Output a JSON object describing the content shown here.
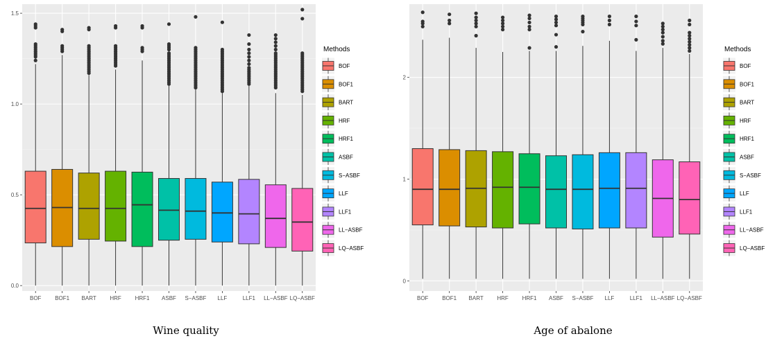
{
  "chart_data": [
    {
      "type": "boxplot",
      "caption": "Wine quality",
      "legend_title": "Methods",
      "ylim": [
        -0.03,
        1.55
      ],
      "yticks": [
        0.0,
        0.5,
        1.0,
        1.5
      ],
      "ytick_labels": [
        "0.0",
        "0.5",
        "1.0",
        "1.5"
      ],
      "legend_position": "right",
      "grid": true,
      "categories": [
        "BOF",
        "BOF1",
        "BART",
        "HRF",
        "HRF1",
        "ASBF",
        "S-ASBF",
        "LLF",
        "LLF1",
        "LL-ASBF",
        "LQ-ASBF"
      ],
      "category_labels": [
        "BOF",
        "BOF1",
        "BART",
        "HRF",
        "HRF1",
        "ASBF",
        "S−ASBF",
        "LLF",
        "LLF1",
        "LL−ASBF",
        "LQ−ASBF"
      ],
      "boxes": [
        {
          "min": 0.0,
          "q1": 0.235,
          "median": 0.425,
          "q3": 0.63,
          "max": 1.22,
          "outliers": [
            1.24,
            1.26,
            1.27,
            1.28,
            1.29,
            1.3,
            1.31,
            1.32,
            1.33,
            1.42,
            1.43,
            1.44
          ]
        },
        {
          "min": 0.0,
          "q1": 0.215,
          "median": 0.43,
          "q3": 0.64,
          "max": 1.27,
          "outliers": [
            1.29,
            1.3,
            1.31,
            1.32,
            1.4,
            1.41
          ]
        },
        {
          "min": 0.0,
          "q1": 0.255,
          "median": 0.425,
          "q3": 0.62,
          "max": 1.16,
          "outliers": [
            1.17,
            1.18,
            1.19,
            1.2,
            1.21,
            1.22,
            1.23,
            1.24,
            1.25,
            1.26,
            1.27,
            1.28,
            1.29,
            1.3,
            1.31,
            1.32,
            1.41,
            1.42
          ]
        },
        {
          "min": 0.0,
          "q1": 0.245,
          "median": 0.425,
          "q3": 0.63,
          "max": 1.19,
          "outliers": [
            1.21,
            1.22,
            1.23,
            1.24,
            1.25,
            1.26,
            1.27,
            1.28,
            1.29,
            1.3,
            1.31,
            1.32,
            1.42,
            1.43
          ]
        },
        {
          "min": 0.0,
          "q1": 0.215,
          "median": 0.445,
          "q3": 0.625,
          "max": 1.24,
          "outliers": [
            1.29,
            1.3,
            1.31,
            1.42,
            1.43
          ]
        },
        {
          "min": 0.0,
          "q1": 0.25,
          "median": 0.415,
          "q3": 0.59,
          "max": 1.1,
          "outliers": [
            1.11,
            1.12,
            1.13,
            1.14,
            1.15,
            1.16,
            1.17,
            1.18,
            1.19,
            1.2,
            1.21,
            1.22,
            1.23,
            1.24,
            1.25,
            1.26,
            1.27,
            1.28,
            1.3,
            1.31,
            1.32,
            1.33,
            1.44
          ]
        },
        {
          "min": 0.0,
          "q1": 0.255,
          "median": 0.41,
          "q3": 0.59,
          "max": 1.08,
          "outliers": [
            1.09,
            1.1,
            1.11,
            1.12,
            1.13,
            1.14,
            1.15,
            1.16,
            1.17,
            1.18,
            1.19,
            1.2,
            1.21,
            1.22,
            1.23,
            1.24,
            1.25,
            1.26,
            1.27,
            1.28,
            1.29,
            1.3,
            1.31,
            1.48
          ]
        },
        {
          "min": 0.0,
          "q1": 0.24,
          "median": 0.4,
          "q3": 0.57,
          "max": 1.06,
          "outliers": [
            1.07,
            1.08,
            1.09,
            1.1,
            1.11,
            1.12,
            1.13,
            1.14,
            1.15,
            1.16,
            1.17,
            1.18,
            1.19,
            1.2,
            1.21,
            1.22,
            1.23,
            1.24,
            1.25,
            1.26,
            1.27,
            1.28,
            1.29,
            1.3,
            1.45
          ]
        },
        {
          "min": 0.0,
          "q1": 0.23,
          "median": 0.395,
          "q3": 0.585,
          "max": 1.1,
          "outliers": [
            1.11,
            1.12,
            1.13,
            1.14,
            1.15,
            1.16,
            1.17,
            1.18,
            1.19,
            1.2,
            1.22,
            1.24,
            1.26,
            1.28,
            1.3,
            1.33,
            1.38
          ]
        },
        {
          "min": 0.0,
          "q1": 0.21,
          "median": 0.37,
          "q3": 0.555,
          "max": 1.06,
          "outliers": [
            1.09,
            1.1,
            1.11,
            1.12,
            1.13,
            1.14,
            1.15,
            1.16,
            1.17,
            1.18,
            1.19,
            1.2,
            1.21,
            1.22,
            1.23,
            1.24,
            1.25,
            1.26,
            1.27,
            1.28,
            1.3,
            1.32,
            1.34,
            1.36,
            1.38
          ]
        },
        {
          "min": 0.0,
          "q1": 0.19,
          "median": 0.35,
          "q3": 0.535,
          "max": 1.05,
          "outliers": [
            1.07,
            1.08,
            1.09,
            1.1,
            1.11,
            1.12,
            1.13,
            1.14,
            1.15,
            1.16,
            1.17,
            1.18,
            1.19,
            1.2,
            1.21,
            1.22,
            1.23,
            1.24,
            1.25,
            1.26,
            1.27,
            1.28,
            1.47,
            1.52
          ]
        }
      ]
    },
    {
      "type": "boxplot",
      "caption": "Age of abalone",
      "legend_title": "Methods",
      "ylim": [
        -0.1,
        2.72
      ],
      "yticks": [
        0,
        1,
        2
      ],
      "ytick_labels": [
        "0",
        "1",
        "2"
      ],
      "legend_position": "right",
      "grid": true,
      "categories": [
        "BOF",
        "BOF1",
        "BART",
        "HRF",
        "HRF1",
        "ASBF",
        "S-ASBF",
        "LLF",
        "LLF1",
        "LL-ASBF",
        "LQ-ASBF"
      ],
      "category_labels": [
        "BOF",
        "BOF1",
        "BART",
        "HRF",
        "HRF1",
        "ASBF",
        "S−ASBF",
        "LLF",
        "LLF1",
        "LL−ASBF",
        "LQ−ASBF"
      ],
      "boxes": [
        {
          "min": 0.02,
          "q1": 0.55,
          "median": 0.9,
          "q3": 1.3,
          "max": 2.37,
          "outliers": [
            2.5,
            2.53,
            2.55,
            2.64
          ]
        },
        {
          "min": 0.02,
          "q1": 0.54,
          "median": 0.9,
          "q3": 1.29,
          "max": 2.39,
          "outliers": [
            2.53,
            2.56,
            2.62
          ]
        },
        {
          "min": 0.02,
          "q1": 0.53,
          "median": 0.91,
          "q3": 1.28,
          "max": 2.29,
          "outliers": [
            2.41,
            2.5,
            2.53,
            2.56,
            2.59,
            2.63
          ]
        },
        {
          "min": 0.02,
          "q1": 0.52,
          "median": 0.92,
          "q3": 1.27,
          "max": 2.25,
          "outliers": [
            2.47,
            2.5,
            2.53,
            2.56,
            2.59
          ]
        },
        {
          "min": 0.02,
          "q1": 0.56,
          "median": 0.92,
          "q3": 1.25,
          "max": 2.26,
          "outliers": [
            2.29,
            2.47,
            2.5,
            2.54,
            2.58,
            2.61
          ]
        },
        {
          "min": 0.02,
          "q1": 0.52,
          "median": 0.9,
          "q3": 1.23,
          "max": 2.26,
          "outliers": [
            2.3,
            2.42,
            2.51,
            2.54,
            2.57,
            2.6
          ]
        },
        {
          "min": 0.02,
          "q1": 0.51,
          "median": 0.9,
          "q3": 1.24,
          "max": 2.31,
          "outliers": [
            2.45,
            2.52,
            2.54,
            2.56,
            2.58,
            2.6
          ]
        },
        {
          "min": 0.02,
          "q1": 0.52,
          "median": 0.91,
          "q3": 1.26,
          "max": 2.36,
          "outliers": [
            2.52,
            2.56,
            2.6
          ]
        },
        {
          "min": 0.02,
          "q1": 0.52,
          "median": 0.91,
          "q3": 1.26,
          "max": 2.26,
          "outliers": [
            2.37,
            2.51,
            2.55,
            2.6
          ]
        },
        {
          "min": 0.02,
          "q1": 0.43,
          "median": 0.81,
          "q3": 1.19,
          "max": 2.29,
          "outliers": [
            2.33,
            2.36,
            2.4,
            2.44,
            2.47,
            2.5,
            2.53
          ]
        },
        {
          "min": 0.02,
          "q1": 0.46,
          "median": 0.8,
          "q3": 1.17,
          "max": 2.23,
          "outliers": [
            2.26,
            2.29,
            2.32,
            2.35,
            2.38,
            2.41,
            2.44,
            2.52,
            2.56
          ]
        }
      ]
    }
  ],
  "colors": [
    "#F8766D",
    "#DB8E00",
    "#AEA200",
    "#64B200",
    "#00BD5C",
    "#00C1A7",
    "#00BADE",
    "#00A6FF",
    "#B385FF",
    "#EF67EB",
    "#FF63B6"
  ]
}
